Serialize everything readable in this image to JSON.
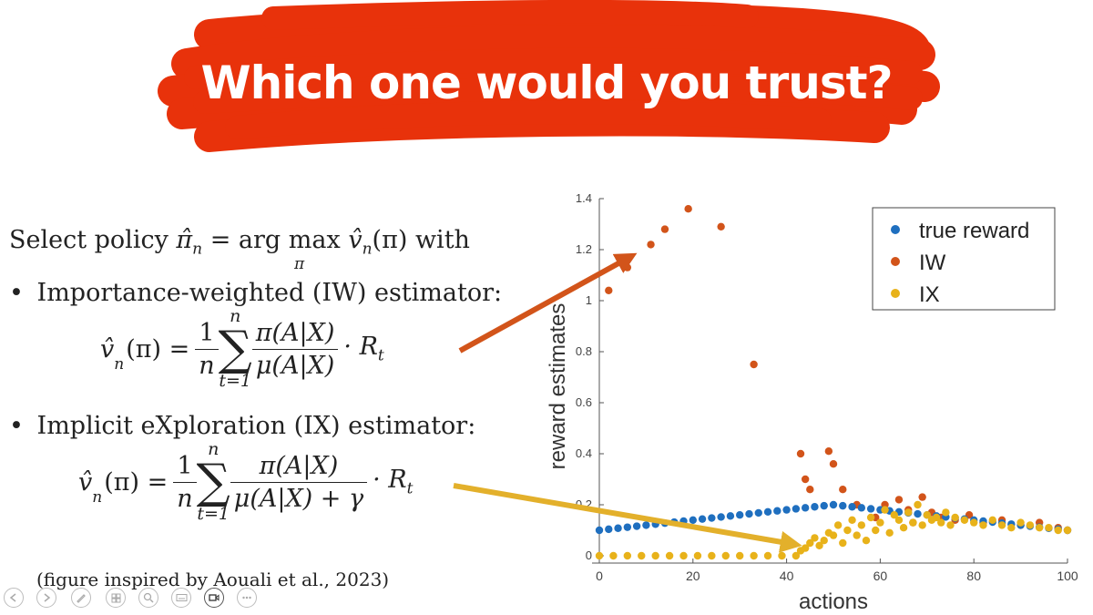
{
  "title": "Which one would you trust?",
  "colors": {
    "brush": "#e8320b",
    "true_reward": "#1f6fbf",
    "iw": "#d2541a",
    "ix": "#e8b21a",
    "arrow_iw": "#d2541a",
    "arrow_ix": "#e3b02b"
  },
  "content": {
    "select_prefix": "Select policy",
    "select_policy_sym": "π̂",
    "select_sub_n": "n",
    "select_eq": "= arg max",
    "select_under": "π",
    "select_v": "v̂",
    "select_arg": "(π) with",
    "bullet": "•",
    "iw_label": "Importance-weighted (IW) estimator:",
    "ix_label": "Implicit eXploration (IX) estimator:",
    "lhs_v": "v̂",
    "lhs_arg": "(π) =",
    "sub_n": "n",
    "one": "1",
    "n": "n",
    "sum_top": "n",
    "sum_bottom": "t=1",
    "sum_sym": "∑",
    "frac_num": "π(A|X)",
    "frac_den_iw": "μ(A|X)",
    "frac_den_ix": "μ(A|X) + γ",
    "times_r": "· R",
    "sub_t": "t",
    "citation": "(figure inspired by Aouali et al., 2023)"
  },
  "toolbar": {
    "icons": [
      "back-icon",
      "forward-icon",
      "pen-icon",
      "pages-icon",
      "zoom-icon",
      "subtitles-icon",
      "video-icon",
      "more-icon"
    ]
  },
  "chart_data": {
    "type": "scatter",
    "xlabel": "actions",
    "ylabel": "reward estimates",
    "xlim": [
      0,
      100
    ],
    "ylim": [
      0,
      1.4
    ],
    "xticks": [
      0,
      20,
      40,
      60,
      80,
      100
    ],
    "yticks": [
      0,
      0.2,
      0.4,
      0.6,
      0.8,
      1,
      1.2,
      1.4
    ],
    "legend_position": "top-right",
    "series": [
      {
        "name": "true reward",
        "x": [
          0,
          2,
          4,
          6,
          8,
          10,
          12,
          14,
          16,
          18,
          20,
          22,
          24,
          26,
          28,
          30,
          32,
          34,
          36,
          38,
          40,
          42,
          44,
          46,
          48,
          50,
          52,
          54,
          56,
          58,
          60,
          62,
          64,
          66,
          68,
          70,
          72,
          74,
          76,
          78,
          80,
          82,
          84,
          86,
          88,
          90,
          92,
          94,
          96,
          98,
          100
        ],
        "y": [
          0.1,
          0.104,
          0.108,
          0.112,
          0.116,
          0.12,
          0.124,
          0.128,
          0.132,
          0.136,
          0.14,
          0.144,
          0.148,
          0.152,
          0.156,
          0.16,
          0.164,
          0.168,
          0.172,
          0.176,
          0.18,
          0.184,
          0.188,
          0.192,
          0.196,
          0.2,
          0.196,
          0.192,
          0.188,
          0.184,
          0.18,
          0.176,
          0.172,
          0.168,
          0.164,
          0.16,
          0.156,
          0.152,
          0.148,
          0.144,
          0.14,
          0.136,
          0.132,
          0.128,
          0.124,
          0.12,
          0.116,
          0.112,
          0.108,
          0.104,
          0.1
        ]
      },
      {
        "name": "IW",
        "x": [
          2,
          6,
          11,
          14,
          19,
          26,
          33,
          43,
          44,
          45,
          49,
          50,
          52,
          55,
          59,
          61,
          64,
          66,
          67,
          69,
          71,
          73,
          76,
          79,
          82,
          86,
          90,
          94,
          98,
          100
        ],
        "y": [
          1.04,
          1.13,
          1.22,
          1.28,
          1.36,
          1.29,
          0.75,
          0.4,
          0.3,
          0.26,
          0.41,
          0.36,
          0.26,
          0.2,
          0.15,
          0.2,
          0.22,
          0.18,
          0.13,
          0.23,
          0.17,
          0.15,
          0.14,
          0.16,
          0.13,
          0.14,
          0.12,
          0.13,
          0.11,
          0.1
        ]
      },
      {
        "name": "IX",
        "x": [
          0,
          3,
          6,
          9,
          12,
          15,
          18,
          21,
          24,
          27,
          30,
          33,
          36,
          39,
          42,
          43,
          44,
          45,
          46,
          47,
          48,
          49,
          50,
          51,
          52,
          53,
          54,
          55,
          56,
          57,
          58,
          59,
          60,
          61,
          62,
          63,
          64,
          65,
          66,
          67,
          68,
          69,
          70,
          71,
          72,
          73,
          74,
          75,
          76,
          78,
          80,
          82,
          84,
          86,
          88,
          90,
          92,
          94,
          96,
          98,
          100
        ],
        "y": [
          0.0,
          0.0,
          0.0,
          0.0,
          0.0,
          0.0,
          0.0,
          0.0,
          0.0,
          0.0,
          0.0,
          0.0,
          0.0,
          0.0,
          0.0,
          0.02,
          0.03,
          0.05,
          0.07,
          0.04,
          0.06,
          0.09,
          0.08,
          0.12,
          0.05,
          0.1,
          0.14,
          0.08,
          0.12,
          0.06,
          0.15,
          0.1,
          0.13,
          0.18,
          0.09,
          0.16,
          0.14,
          0.11,
          0.17,
          0.13,
          0.2,
          0.12,
          0.16,
          0.14,
          0.15,
          0.13,
          0.17,
          0.12,
          0.15,
          0.14,
          0.13,
          0.12,
          0.14,
          0.12,
          0.11,
          0.13,
          0.12,
          0.11,
          0.11,
          0.1,
          0.1
        ]
      }
    ]
  }
}
